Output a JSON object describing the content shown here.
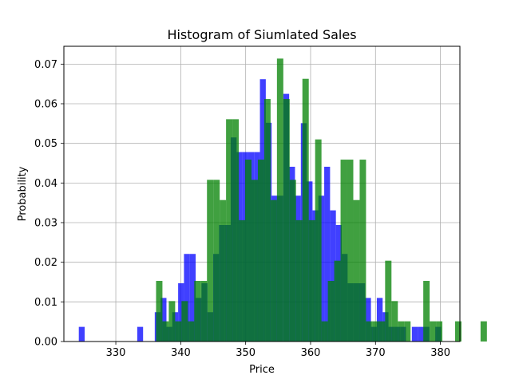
{
  "chart_data": {
    "type": "bar",
    "title": "Histogram of Siumlated Sales",
    "xlabel": "Price",
    "ylabel": "Probability",
    "xlim": [
      322,
      383
    ],
    "ylim": [
      0,
      0.0745
    ],
    "grid": true,
    "colors": {
      "blue": "#0000ff",
      "green": "#008000"
    },
    "xticks": [
      {
        "value": 330,
        "label": "330"
      },
      {
        "value": 340,
        "label": "340"
      },
      {
        "value": 350,
        "label": "350"
      },
      {
        "value": 360,
        "label": "360"
      },
      {
        "value": 370,
        "label": "370"
      },
      {
        "value": 380,
        "label": "380"
      }
    ],
    "yticks": [
      {
        "value": 0.0,
        "label": "0.00"
      },
      {
        "value": 0.01,
        "label": "0.01"
      },
      {
        "value": 0.02,
        "label": "0.02"
      },
      {
        "value": 0.03,
        "label": "0.03"
      },
      {
        "value": 0.04,
        "label": "0.04"
      },
      {
        "value": 0.05,
        "label": "0.05"
      },
      {
        "value": 0.06,
        "label": "0.06"
      },
      {
        "value": 0.07,
        "label": "0.07"
      }
    ],
    "series": [
      {
        "color": "#0000ff",
        "opacity": 0.75,
        "bin_start": 324.3,
        "bin_width": 0.9,
        "values": [
          0.0037,
          0,
          0,
          0,
          0,
          0,
          0,
          0,
          0,
          0,
          0.0037,
          0,
          0,
          0.0074,
          0.011,
          0.0037,
          0.0074,
          0.0147,
          0.0221,
          0.0221,
          0.011,
          0.0147,
          0.0074,
          0.0221,
          0.0294,
          0.0294,
          0.0515,
          0.0478,
          0.0478,
          0.0478,
          0.0478,
          0.0662,
          0.0552,
          0.0368,
          0.0368,
          0.0625,
          0.0441,
          0.0368,
          0.0551,
          0.0404,
          0.0331,
          0.0368,
          0.0441,
          0.0331,
          0.0294,
          0.0221,
          0.0147,
          0.0147,
          0.0147,
          0.011,
          0.0037,
          0.011,
          0.0074,
          0.0037,
          0.0037,
          0.0037,
          0,
          0.0037,
          0.0037,
          0.0037,
          0,
          0.0037
        ]
      },
      {
        "color": "#008000",
        "opacity": 0.75,
        "bin_start": 336.2,
        "bin_width": 0.98,
        "values": [
          0.0153,
          0.0051,
          0.0102,
          0.0051,
          0.0102,
          0.0051,
          0.0153,
          0.0153,
          0.0408,
          0.0408,
          0.0357,
          0.0561,
          0.0561,
          0.0306,
          0.0459,
          0.0408,
          0.0459,
          0.0612,
          0.0357,
          0.0714,
          0.0612,
          0.0408,
          0.0306,
          0.0663,
          0.0306,
          0.051,
          0.0051,
          0.0153,
          0.0204,
          0.0459,
          0.0459,
          0.0357,
          0.0459,
          0.0051,
          0.0051,
          0.0051,
          0.0204,
          0.0102,
          0.0051,
          0.0051,
          0,
          0,
          0.0153,
          0.0051,
          0.0051,
          0,
          0,
          0.0051,
          0,
          0,
          0,
          0.0051
        ]
      }
    ]
  }
}
